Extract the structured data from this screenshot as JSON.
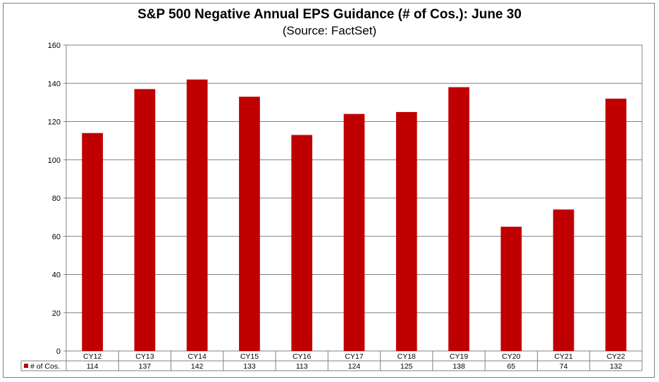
{
  "chart_data": {
    "type": "bar",
    "title": "S&P 500 Negative Annual EPS Guidance (# of Cos.): June 30",
    "subtitle": "(Source: FactSet)",
    "categories": [
      "CY12",
      "CY13",
      "CY14",
      "CY15",
      "CY16",
      "CY17",
      "CY18",
      "CY19",
      "CY20",
      "CY21",
      "CY22"
    ],
    "series": [
      {
        "name": "# of Cos.",
        "values": [
          114,
          137,
          142,
          133,
          113,
          124,
          125,
          138,
          65,
          74,
          132
        ]
      }
    ],
    "yticks": [
      "0",
      "20",
      "40",
      "60",
      "80",
      "100",
      "120",
      "140",
      "160"
    ],
    "ylim": [
      0,
      160
    ],
    "xlabel": "",
    "ylabel": "",
    "grid": true,
    "legend": "data-table-left",
    "data_table": true
  },
  "colors": {
    "bar": "#c00000",
    "grid": "#808080",
    "axis": "#808080"
  }
}
